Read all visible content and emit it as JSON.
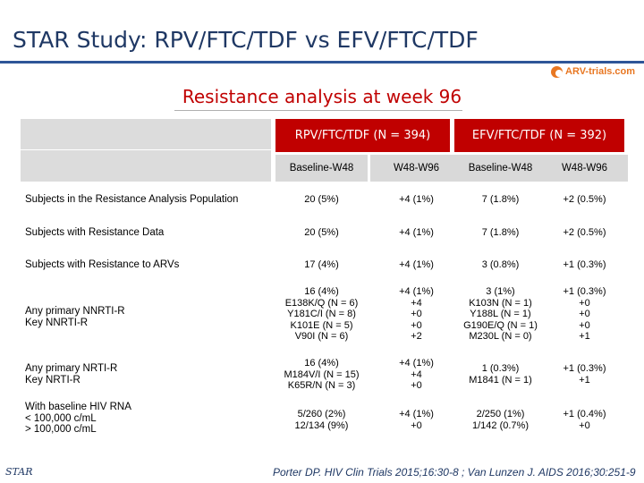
{
  "title": "STAR Study: RPV/FTC/TDF vs EFV/FTC/TDF",
  "brand": {
    "logo_text": "ARV-trials.com",
    "accent": "#e87722"
  },
  "subtitle": "Resistance analysis at week 96",
  "table": {
    "groups": [
      "RPV/FTC/TDF (N = 394)",
      "EFV/FTC/TDF (N = 392)"
    ],
    "columns": [
      "Baseline-W48",
      "W48-W96",
      "Baseline-W48",
      "W48-W96"
    ],
    "rows": [
      {
        "label": "Subjects in the Resistance Analysis Population",
        "cells": [
          "20 (5%)",
          "+4 (1%)",
          "7 (1.8%)",
          "+2 (0.5%)"
        ]
      },
      {
        "label": "Subjects with Resistance Data",
        "cells": [
          "20 (5%)",
          "+4 (1%)",
          "7 (1.8%)",
          "+2 (0.5%)"
        ]
      },
      {
        "label": "Subjects with Resistance to ARVs",
        "cells": [
          "17 (4%)",
          "+4 (1%)",
          "3 (0.8%)",
          "+1 (0.3%)"
        ]
      },
      {
        "label": "Any primary NNRTI-R\nKey NNRTI-R",
        "cells": [
          "16 (4%)\nE138K/Q (N = 6)\nY181C/I (N = 8)\nK101E (N = 5)\nV90I (N = 6)",
          "+4 (1%)\n+4\n+0\n+0\n+2",
          "3 (1%)\nK103N (N = 1)\nY188L (N = 1)\nG190E/Q (N = 1)\nM230L (N = 0)",
          "+1 (0.3%)\n+0\n+0\n+0\n+1"
        ]
      },
      {
        "label": "Any primary NRTI-R\nKey NRTI-R",
        "cells": [
          "16 (4%)\nM184V/I (N = 15)\nK65R/N (N = 3)",
          "+4 (1%)\n+4\n+0",
          "1 (0.3%)\nM1841 (N = 1)",
          "+1 (0.3%)\n+1"
        ]
      },
      {
        "label": "With baseline HIV RNA\n< 100,000 c/mL\n> 100,000 c/mL",
        "cells": [
          "5/260 (2%)\n12/134 (9%)",
          "+4 (1%)\n+0",
          "2/250 (1%)\n1/142 (0.7%)",
          "+1 (0.4%)\n+0"
        ]
      }
    ]
  },
  "footer": {
    "star_logo": "STAR",
    "reference": "Porter DP. HIV Clin Trials 2015;16:30-8 ; Van Lunzen J. AIDS 2016;30:251-9"
  }
}
